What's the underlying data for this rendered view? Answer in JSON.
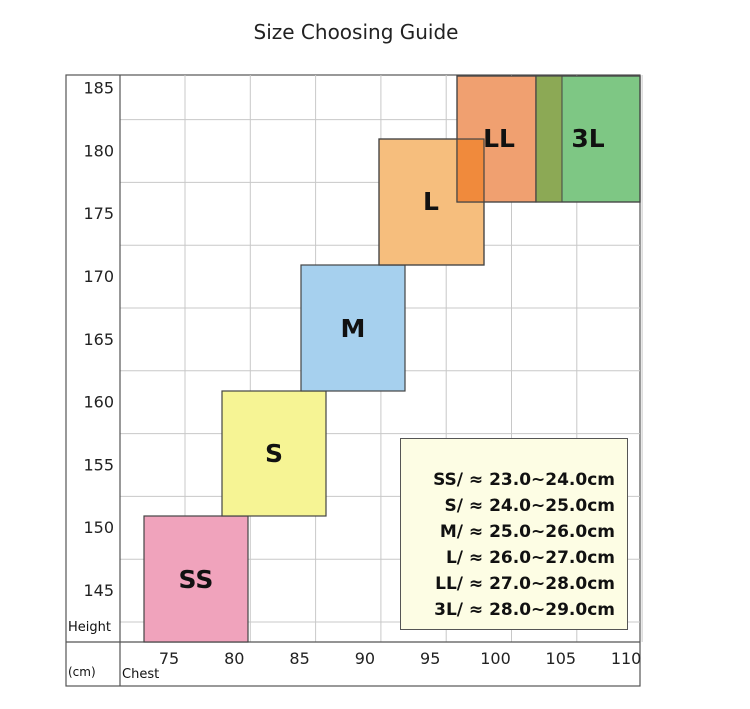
{
  "title": "Size Choosing Guide",
  "chart_data": {
    "type": "heatmap",
    "title": "Size Choosing Guide",
    "xlabel": "Chest",
    "ylabel": "Height",
    "unit": "(cm)",
    "xlim": [
      70,
      112
    ],
    "ylim": [
      141,
      186
    ],
    "x_ticks": [
      75,
      80,
      85,
      90,
      95,
      100,
      105,
      110
    ],
    "y_ticks": [
      145,
      150,
      155,
      160,
      165,
      170,
      175,
      180,
      185
    ],
    "grid": true,
    "sizes": [
      {
        "label": "SS",
        "chest": [
          76,
          84
        ],
        "height": [
          140,
          150
        ],
        "color": "#f0a3bc"
      },
      {
        "label": "S",
        "chest": [
          82,
          90
        ],
        "height": [
          150,
          160
        ],
        "color": "#f6f494"
      },
      {
        "label": "M",
        "chest": [
          88,
          96
        ],
        "height": [
          160,
          170
        ],
        "color": "#a6d0ee"
      },
      {
        "label": "L",
        "chest": [
          94,
          102
        ],
        "height": [
          170,
          180
        ],
        "color": "#f6be7d"
      },
      {
        "label": "LL",
        "chest": [
          100,
          106
        ],
        "height": [
          175,
          185
        ],
        "color": "#f0a070"
      },
      {
        "label": "3L",
        "chest": [
          106,
          112
        ],
        "height": [
          175,
          185
        ],
        "color": "#7ec784"
      }
    ],
    "overlap_colors": {
      "L_LL": "#f08a3c",
      "LL_3L": "#8ca955"
    }
  },
  "legend": [
    "SS/ ≈ 23.0~24.0cm",
    "S/ ≈ 24.0~25.0cm",
    "M/ ≈ 25.0~26.0cm",
    "L/ ≈ 26.0~27.0cm",
    "LL/ ≈ 27.0~28.0cm",
    "3L/ ≈ 28.0~29.0cm"
  ]
}
